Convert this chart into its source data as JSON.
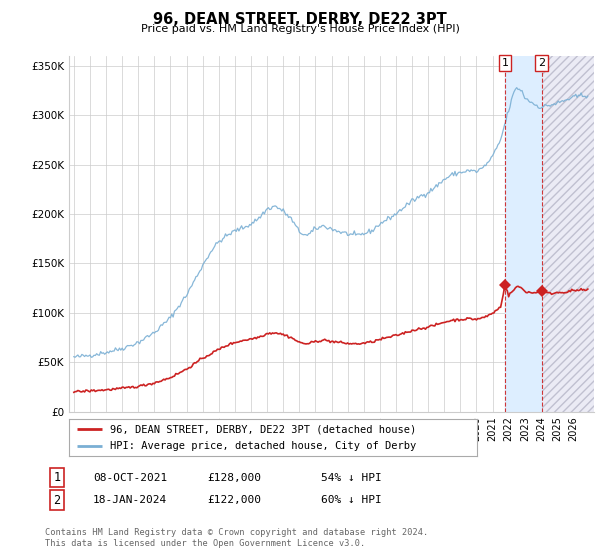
{
  "title": "96, DEAN STREET, DERBY, DE22 3PT",
  "subtitle": "Price paid vs. HM Land Registry's House Price Index (HPI)",
  "legend_line1": "96, DEAN STREET, DERBY, DE22 3PT (detached house)",
  "legend_line2": "HPI: Average price, detached house, City of Derby",
  "footnote": "Contains HM Land Registry data © Crown copyright and database right 2024.\nThis data is licensed under the Open Government Licence v3.0.",
  "transaction1_date": "08-OCT-2021",
  "transaction1_price": "£128,000",
  "transaction1_hpi": "54% ↓ HPI",
  "transaction2_date": "18-JAN-2024",
  "transaction2_price": "£122,000",
  "transaction2_hpi": "60% ↓ HPI",
  "ylim": [
    0,
    360000
  ],
  "yticks": [
    0,
    50000,
    100000,
    150000,
    200000,
    250000,
    300000,
    350000
  ],
  "ytick_labels": [
    "£0",
    "£50K",
    "£100K",
    "£150K",
    "£200K",
    "£250K",
    "£300K",
    "£350K"
  ],
  "hpi_color": "#7aafd4",
  "property_color": "#cc2222",
  "highlight_color": "#ddeeff",
  "grid_color": "#cccccc",
  "background_color": "#ffffff",
  "transaction1_x": 2021.77,
  "transaction2_x": 2024.05,
  "transaction1_value": 128000,
  "transaction2_value": 122000,
  "xlim_left": 1994.7,
  "xlim_right": 2027.3
}
